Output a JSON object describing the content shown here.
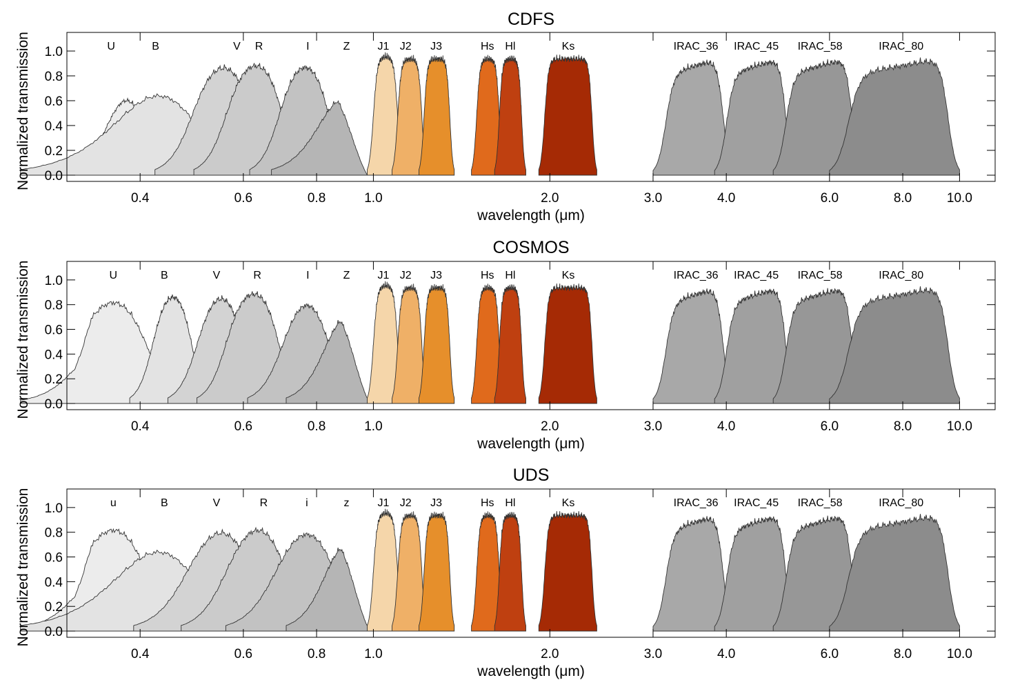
{
  "figure": {
    "ylabel": "Normalized transmission",
    "xlabel": "wavelength (μm)"
  },
  "chart_data": [
    {
      "type": "area",
      "title": "CDFS",
      "xlabel": "wavelength (μm)",
      "ylabel": "Normalized transmission",
      "x_scale": "log",
      "xlim": [
        0.3,
        11.5
      ],
      "ylim": [
        -0.05,
        1.15
      ],
      "x_ticks": [
        0.4,
        0.6,
        0.8,
        1.0,
        2.0,
        3.0,
        4.0,
        6.0,
        8.0,
        10.0
      ],
      "x_tick_labels": [
        "0.4",
        "0.6",
        "0.8",
        "1.0",
        "2.0",
        "3.0",
        "4.0",
        "6.0",
        "8.0",
        "10.0"
      ],
      "y_ticks": [
        0.0,
        0.2,
        0.4,
        0.6,
        0.8,
        1.0
      ],
      "y_tick_labels": [
        "0.0",
        "0.2",
        "0.4",
        "0.6",
        "0.8",
        "1.0"
      ],
      "grid": false,
      "series": [
        {
          "name": "U",
          "lo": 0.34,
          "hi": 0.4,
          "w": 0.015,
          "peak": 1.0,
          "fill": "#ececec",
          "label_x": 0.357,
          "shape": "U"
        },
        {
          "name": "B",
          "lo": 0.37,
          "hi": 0.49,
          "w": 0.04,
          "peak": 1.0,
          "fill": "#e3e3e3",
          "label_x": 0.425
        },
        {
          "name": "V",
          "lo": 0.49,
          "hi": 0.62,
          "w": 0.022,
          "peak": 1.0,
          "fill": "#d3d3d3",
          "label_x": 0.585
        },
        {
          "name": "R",
          "lo": 0.56,
          "hi": 0.7,
          "w": 0.022,
          "peak": 1.0,
          "fill": "#cbcbcb",
          "label_x": 0.638
        },
        {
          "name": "I",
          "lo": 0.69,
          "hi": 0.84,
          "w": 0.025,
          "peak": 1.0,
          "fill": "#c2c2c2",
          "label_x": 0.773
        },
        {
          "name": "Z",
          "lo": 0.82,
          "hi": 0.96,
          "w": 0.05,
          "peak": 1.0,
          "fill": "#b5b5b5",
          "label_x": 0.9,
          "shape": "Z"
        },
        {
          "name": "J1",
          "lo": 1.0,
          "hi": 1.1,
          "w": 0.008,
          "peak": 1.0,
          "fill": "#f5d6aa",
          "label_x": 1.04
        },
        {
          "name": "J2",
          "lo": 1.1,
          "hi": 1.21,
          "w": 0.008,
          "peak": 0.98,
          "fill": "#efb067",
          "label_x": 1.135
        },
        {
          "name": "J3",
          "lo": 1.22,
          "hi": 1.35,
          "w": 0.008,
          "peak": 0.98,
          "fill": "#e68f2b",
          "label_x": 1.28
        },
        {
          "name": "Hs",
          "lo": 1.5,
          "hi": 1.64,
          "w": 0.01,
          "peak": 0.98,
          "fill": "#e06a1c",
          "label_x": 1.565
        },
        {
          "name": "Hl",
          "lo": 1.64,
          "hi": 1.79,
          "w": 0.01,
          "peak": 0.98,
          "fill": "#bf4010",
          "label_x": 1.712
        },
        {
          "name": "Ks",
          "lo": 1.96,
          "hi": 2.36,
          "w": 0.015,
          "peak": 0.98,
          "fill": "#a52a05",
          "label_x": 2.15
        },
        {
          "name": "IRAC_36",
          "lo": 3.15,
          "hi": 3.95,
          "w": 0.05,
          "peak": 1.0,
          "fill": "#a8a8a8",
          "label_x": 3.55
        },
        {
          "name": "IRAC_45",
          "lo": 4.0,
          "hi": 5.05,
          "w": 0.06,
          "peak": 1.0,
          "fill": "#a0a0a0",
          "label_x": 4.5
        },
        {
          "name": "IRAC_58",
          "lo": 5.05,
          "hi": 6.55,
          "w": 0.08,
          "peak": 1.0,
          "fill": "#979797",
          "label_x": 5.78
        },
        {
          "name": "IRAC_80",
          "lo": 6.45,
          "hi": 9.55,
          "w": 0.15,
          "peak": 1.0,
          "fill": "#8c8c8c",
          "label_x": 7.95
        }
      ]
    },
    {
      "type": "area",
      "title": "COSMOS",
      "xlabel": "wavelength (μm)",
      "ylabel": "Normalized transmission",
      "x_scale": "log",
      "xlim": [
        0.3,
        11.5
      ],
      "ylim": [
        -0.05,
        1.15
      ],
      "x_ticks": [
        0.4,
        0.6,
        0.8,
        1.0,
        2.0,
        3.0,
        4.0,
        6.0,
        8.0,
        10.0
      ],
      "x_tick_labels": [
        "0.4",
        "0.6",
        "0.8",
        "1.0",
        "2.0",
        "3.0",
        "4.0",
        "6.0",
        "8.0",
        "10.0"
      ],
      "y_ticks": [
        0.0,
        0.2,
        0.4,
        0.6,
        0.8,
        1.0
      ],
      "y_tick_labels": [
        "0.0",
        "0.2",
        "0.4",
        "0.6",
        "0.8",
        "1.0"
      ],
      "grid": false,
      "series": [
        {
          "name": "U",
          "lo": 0.31,
          "hi": 0.41,
          "w": 0.02,
          "peak": 1.0,
          "fill": "#ececec",
          "label_x": 0.36,
          "shape": "u"
        },
        {
          "name": "B",
          "lo": 0.42,
          "hi": 0.49,
          "w": 0.012,
          "peak": 1.0,
          "fill": "#e3e3e3",
          "label_x": 0.44
        },
        {
          "name": "V",
          "lo": 0.5,
          "hi": 0.6,
          "w": 0.018,
          "peak": 1.0,
          "fill": "#d3d3d3",
          "label_x": 0.54
        },
        {
          "name": "R",
          "lo": 0.56,
          "hi": 0.69,
          "w": 0.02,
          "peak": 1.0,
          "fill": "#cbcbcb",
          "label_x": 0.634
        },
        {
          "name": "I",
          "lo": 0.7,
          "hi": 0.84,
          "w": 0.03,
          "peak": 1.0,
          "fill": "#c2c2c2",
          "label_x": 0.773
        },
        {
          "name": "Z",
          "lo": 0.83,
          "hi": 0.97,
          "w": 0.04,
          "peak": 1.0,
          "fill": "#b5b5b5",
          "label_x": 0.9,
          "shape": "Z"
        },
        {
          "name": "J1",
          "lo": 1.0,
          "hi": 1.1,
          "w": 0.008,
          "peak": 1.0,
          "fill": "#f5d6aa",
          "label_x": 1.04
        },
        {
          "name": "J2",
          "lo": 1.1,
          "hi": 1.21,
          "w": 0.008,
          "peak": 0.98,
          "fill": "#efb067",
          "label_x": 1.135
        },
        {
          "name": "J3",
          "lo": 1.22,
          "hi": 1.35,
          "w": 0.008,
          "peak": 0.98,
          "fill": "#e68f2b",
          "label_x": 1.28
        },
        {
          "name": "Hs",
          "lo": 1.5,
          "hi": 1.64,
          "w": 0.01,
          "peak": 0.98,
          "fill": "#e06a1c",
          "label_x": 1.565
        },
        {
          "name": "Hl",
          "lo": 1.64,
          "hi": 1.79,
          "w": 0.01,
          "peak": 0.98,
          "fill": "#bf4010",
          "label_x": 1.712
        },
        {
          "name": "Ks",
          "lo": 1.96,
          "hi": 2.36,
          "w": 0.015,
          "peak": 0.98,
          "fill": "#a52a05",
          "label_x": 2.15
        },
        {
          "name": "IRAC_36",
          "lo": 3.15,
          "hi": 3.95,
          "w": 0.05,
          "peak": 1.0,
          "fill": "#a8a8a8",
          "label_x": 3.55
        },
        {
          "name": "IRAC_45",
          "lo": 4.0,
          "hi": 5.05,
          "w": 0.06,
          "peak": 1.0,
          "fill": "#a0a0a0",
          "label_x": 4.5
        },
        {
          "name": "IRAC_58",
          "lo": 5.05,
          "hi": 6.55,
          "w": 0.08,
          "peak": 1.0,
          "fill": "#979797",
          "label_x": 5.78
        },
        {
          "name": "IRAC_80",
          "lo": 6.45,
          "hi": 9.55,
          "w": 0.15,
          "peak": 1.0,
          "fill": "#8c8c8c",
          "label_x": 7.95
        }
      ]
    },
    {
      "type": "area",
      "title": "UDS",
      "xlabel": "wavelength (μm)",
      "ylabel": "Normalized transmission",
      "x_scale": "log",
      "xlim": [
        0.3,
        11.5
      ],
      "ylim": [
        -0.05,
        1.15
      ],
      "x_ticks": [
        0.4,
        0.6,
        0.8,
        1.0,
        2.0,
        3.0,
        4.0,
        6.0,
        8.0,
        10.0
      ],
      "x_tick_labels": [
        "0.4",
        "0.6",
        "0.8",
        "1.0",
        "2.0",
        "3.0",
        "4.0",
        "6.0",
        "8.0",
        "10.0"
      ],
      "y_ticks": [
        0.0,
        0.2,
        0.4,
        0.6,
        0.8,
        1.0
      ],
      "y_tick_labels": [
        "0.0",
        "0.2",
        "0.4",
        "0.6",
        "0.8",
        "1.0"
      ],
      "grid": false,
      "series": [
        {
          "name": "u",
          "lo": 0.31,
          "hi": 0.41,
          "w": 0.02,
          "peak": 1.0,
          "fill": "#ececec",
          "label_x": 0.36,
          "shape": "u"
        },
        {
          "name": "B",
          "lo": 0.37,
          "hi": 0.49,
          "w": 0.04,
          "peak": 1.0,
          "fill": "#e3e3e3",
          "label_x": 0.44
        },
        {
          "name": "V",
          "lo": 0.48,
          "hi": 0.62,
          "w": 0.03,
          "peak": 1.0,
          "fill": "#d3d3d3",
          "label_x": 0.54
        },
        {
          "name": "R",
          "lo": 0.56,
          "hi": 0.71,
          "w": 0.03,
          "peak": 1.0,
          "fill": "#cbcbcb",
          "label_x": 0.65
        },
        {
          "name": "i",
          "lo": 0.68,
          "hi": 0.86,
          "w": 0.04,
          "peak": 1.0,
          "fill": "#c2c2c2",
          "label_x": 0.77
        },
        {
          "name": "z",
          "lo": 0.83,
          "hi": 0.97,
          "w": 0.04,
          "peak": 1.0,
          "fill": "#b5b5b5",
          "label_x": 0.9,
          "shape": "Z"
        },
        {
          "name": "J1",
          "lo": 1.0,
          "hi": 1.1,
          "w": 0.008,
          "peak": 1.0,
          "fill": "#f5d6aa",
          "label_x": 1.04
        },
        {
          "name": "J2",
          "lo": 1.1,
          "hi": 1.21,
          "w": 0.008,
          "peak": 0.98,
          "fill": "#efb067",
          "label_x": 1.135
        },
        {
          "name": "J3",
          "lo": 1.22,
          "hi": 1.35,
          "w": 0.008,
          "peak": 0.98,
          "fill": "#e68f2b",
          "label_x": 1.28
        },
        {
          "name": "Hs",
          "lo": 1.5,
          "hi": 1.64,
          "w": 0.01,
          "peak": 0.98,
          "fill": "#e06a1c",
          "label_x": 1.565
        },
        {
          "name": "Hl",
          "lo": 1.64,
          "hi": 1.79,
          "w": 0.01,
          "peak": 0.98,
          "fill": "#bf4010",
          "label_x": 1.712
        },
        {
          "name": "Ks",
          "lo": 1.96,
          "hi": 2.36,
          "w": 0.015,
          "peak": 0.98,
          "fill": "#a52a05",
          "label_x": 2.15
        },
        {
          "name": "IRAC_36",
          "lo": 3.15,
          "hi": 3.95,
          "w": 0.05,
          "peak": 1.0,
          "fill": "#a8a8a8",
          "label_x": 3.55
        },
        {
          "name": "IRAC_45",
          "lo": 4.0,
          "hi": 5.05,
          "w": 0.06,
          "peak": 1.0,
          "fill": "#a0a0a0",
          "label_x": 4.5
        },
        {
          "name": "IRAC_58",
          "lo": 5.05,
          "hi": 6.55,
          "w": 0.08,
          "peak": 1.0,
          "fill": "#979797",
          "label_x": 5.78
        },
        {
          "name": "IRAC_80",
          "lo": 6.45,
          "hi": 9.55,
          "w": 0.15,
          "peak": 1.0,
          "fill": "#8c8c8c",
          "label_x": 7.95
        }
      ]
    }
  ]
}
